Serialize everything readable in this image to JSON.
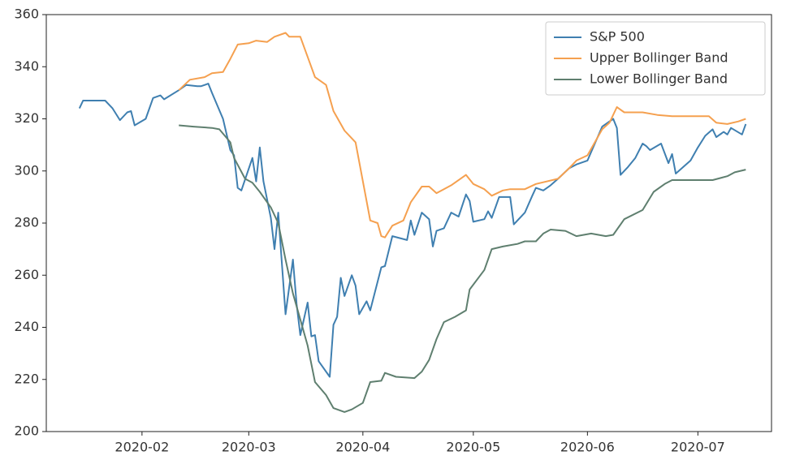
{
  "chart_data": {
    "type": "line",
    "xlim": [
      6,
      203
    ],
    "ylim": [
      200,
      360
    ],
    "xticks": [
      {
        "value": 32,
        "label": "2020-02"
      },
      {
        "value": 61,
        "label": "2020-03"
      },
      {
        "value": 92,
        "label": "2020-04"
      },
      {
        "value": 122,
        "label": "2020-05"
      },
      {
        "value": 153,
        "label": "2020-06"
      },
      {
        "value": 183,
        "label": "2020-07"
      }
    ],
    "yticks": [
      200,
      220,
      240,
      260,
      280,
      300,
      320,
      340,
      360
    ],
    "legend": "upper right",
    "series": [
      {
        "name": "S&P 500",
        "color": "#3f7fb0",
        "x": [
          15,
          16,
          20,
          22,
          24,
          26,
          28,
          29,
          30,
          33,
          35,
          37,
          38,
          42,
          44,
          47,
          48,
          50,
          51,
          54,
          56,
          57,
          58,
          59,
          62,
          63,
          64,
          65,
          67,
          68,
          69,
          71,
          73,
          74,
          75,
          77,
          78,
          79,
          80,
          83,
          84,
          85,
          86,
          87,
          89,
          90,
          91,
          93,
          94,
          97,
          98,
          100,
          104,
          105,
          106,
          108,
          110,
          111,
          112,
          114,
          116,
          118,
          120,
          121,
          122,
          125,
          126,
          127,
          129,
          132,
          133,
          136,
          138,
          139,
          141,
          143,
          145,
          148,
          150,
          153,
          157,
          160,
          161,
          162,
          164,
          166,
          168,
          169,
          170,
          173,
          175,
          176,
          177,
          181,
          183,
          185,
          187,
          188,
          190,
          191,
          192,
          195,
          196
        ],
        "values": [
          324,
          327,
          327,
          327,
          324,
          319.5,
          322.5,
          323,
          317.5,
          320,
          328,
          329,
          327.5,
          331,
          333,
          332.5,
          332.5,
          333.5,
          330,
          320,
          308,
          306,
          293.5,
          292.5,
          305,
          296,
          309,
          296,
          282,
          270,
          284,
          245,
          266,
          249,
          237,
          249.5,
          236.5,
          237,
          227,
          221,
          241,
          244,
          259,
          252,
          260,
          256,
          245,
          250,
          246.5,
          263,
          263.5,
          275,
          273.5,
          281,
          275.5,
          284,
          281.5,
          271,
          277,
          278,
          284,
          282.5,
          291,
          288.5,
          280.5,
          281.5,
          284.5,
          282,
          290,
          290,
          279.5,
          284,
          290.5,
          293.5,
          292.5,
          294.5,
          297,
          301,
          302.5,
          304,
          317,
          320,
          316.5,
          298.5,
          301.5,
          305,
          310.5,
          309.5,
          308,
          310.5,
          303,
          306.5,
          299,
          304,
          309,
          313.5,
          316,
          313,
          315,
          314,
          316.5,
          314,
          318
        ]
      },
      {
        "name": "Upper Bollinger Band",
        "color": "#f5a04f",
        "x": [
          42,
          45,
          49,
          51,
          54,
          56,
          58,
          61,
          63,
          66,
          68,
          71,
          72,
          75,
          79,
          82,
          84,
          87,
          90,
          94,
          96,
          97,
          98,
          100,
          103,
          105,
          108,
          110,
          112,
          114,
          116,
          120,
          122,
          125,
          127,
          130,
          132,
          136,
          139,
          145,
          148,
          150,
          153,
          157,
          159,
          161,
          163,
          168,
          172,
          176,
          181,
          186,
          188,
          191,
          194,
          196
        ],
        "values": [
          331,
          335,
          336,
          337.5,
          338,
          343,
          348.5,
          349,
          350,
          349.5,
          351.5,
          353,
          351.5,
          351.5,
          336,
          333,
          323,
          315.5,
          311,
          281,
          280,
          275,
          274.5,
          279,
          281,
          288,
          294,
          294,
          291.5,
          293,
          294.5,
          298.5,
          295,
          293,
          290.5,
          292.5,
          293,
          293,
          295,
          297,
          301,
          304,
          306,
          316,
          318.5,
          324.5,
          322.5,
          322.5,
          321.5,
          321,
          321,
          321,
          318.5,
          318,
          319,
          320
        ]
      },
      {
        "name": "Lower Bollinger Band",
        "color": "#5f7f6f",
        "x": [
          42,
          46,
          51,
          53,
          56,
          57,
          60,
          62,
          64,
          67,
          69,
          71,
          73,
          75,
          77,
          79,
          82,
          84,
          87,
          89,
          92,
          94,
          97,
          98,
          101,
          106,
          108,
          110,
          112,
          114,
          117,
          120,
          121,
          125,
          127,
          130,
          134,
          136,
          139,
          141,
          143,
          147,
          150,
          154,
          158,
          160,
          163,
          168,
          171,
          174,
          176,
          181,
          187,
          191,
          193,
          196
        ],
        "values": [
          317.5,
          317,
          316.5,
          316,
          311,
          305,
          297,
          295.5,
          292,
          286,
          280,
          266,
          253,
          243,
          233,
          219,
          214,
          209,
          207.5,
          208.5,
          211,
          219,
          219.5,
          222.5,
          221,
          220.5,
          223,
          227.5,
          235.5,
          242,
          244,
          246.5,
          254.5,
          262,
          270,
          271,
          272,
          273,
          273,
          276,
          277.5,
          277,
          275,
          276,
          275,
          275.5,
          281.5,
          285,
          292,
          295,
          296.5,
          296.5,
          296.5,
          298,
          299.5,
          300.5
        ]
      }
    ]
  }
}
